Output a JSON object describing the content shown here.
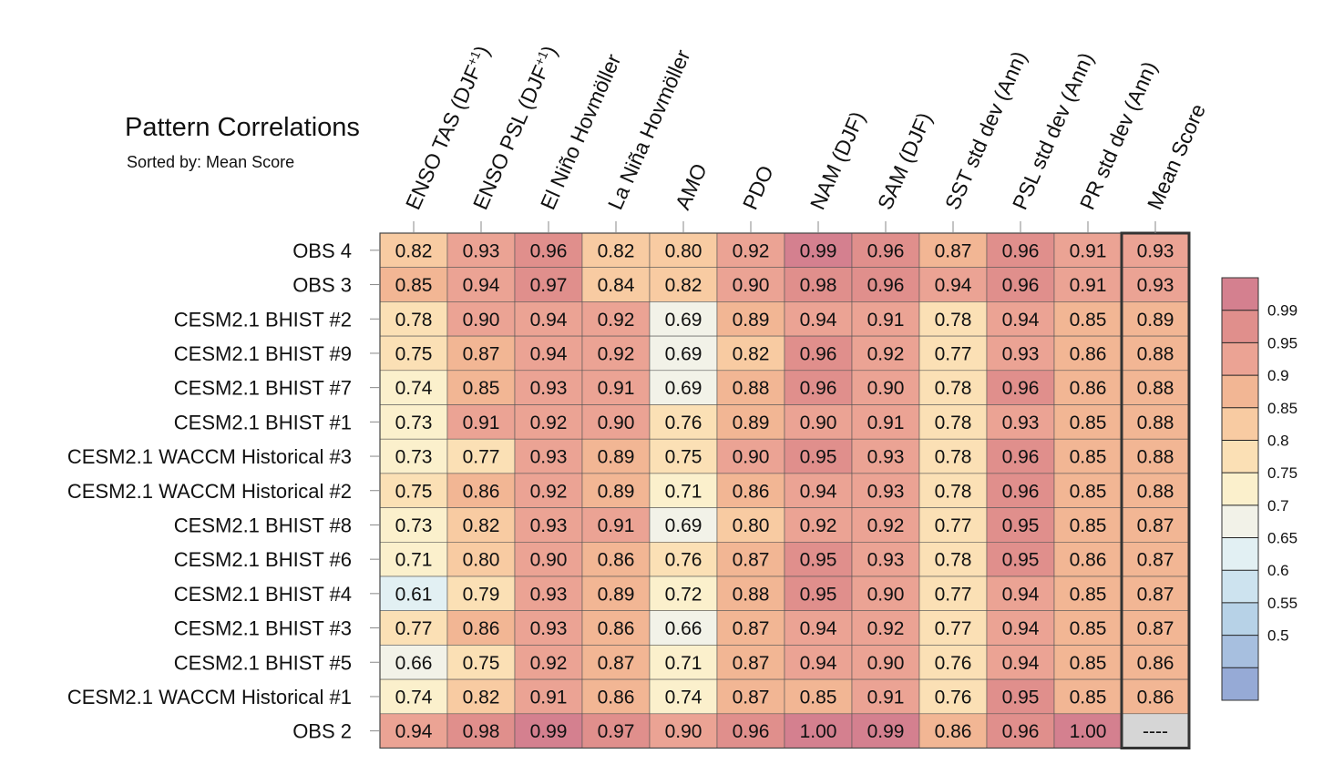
{
  "chart_data": {
    "type": "heatmap",
    "title": "Pattern Correlations",
    "subtitle": "Sorted by: Mean Score",
    "columns": [
      "ENSO TAS (DJF+1)",
      "ENSO PSL (DJF+1)",
      "El Niño Hovmöller",
      "La Niña Hovmöller",
      "AMO",
      "PDO",
      "NAM (DJF)",
      "SAM (DJF)",
      "SST std dev (Ann)",
      "PSL std dev (Ann)",
      "PR std dev (Ann)",
      "Mean Score"
    ],
    "rows": [
      {
        "label": "OBS 4",
        "values": [
          "0.82",
          "0.93",
          "0.96",
          "0.82",
          "0.80",
          "0.92",
          "0.99",
          "0.96",
          "0.87",
          "0.96",
          "0.91",
          "0.93"
        ]
      },
      {
        "label": "OBS 3",
        "values": [
          "0.85",
          "0.94",
          "0.97",
          "0.84",
          "0.82",
          "0.90",
          "0.98",
          "0.96",
          "0.94",
          "0.96",
          "0.91",
          "0.93"
        ]
      },
      {
        "label": "CESM2.1 BHIST #2",
        "values": [
          "0.78",
          "0.90",
          "0.94",
          "0.92",
          "0.69",
          "0.89",
          "0.94",
          "0.91",
          "0.78",
          "0.94",
          "0.85",
          "0.89"
        ]
      },
      {
        "label": "CESM2.1 BHIST #9",
        "values": [
          "0.75",
          "0.87",
          "0.94",
          "0.92",
          "0.69",
          "0.82",
          "0.96",
          "0.92",
          "0.77",
          "0.93",
          "0.86",
          "0.88"
        ]
      },
      {
        "label": "CESM2.1 BHIST #7",
        "values": [
          "0.74",
          "0.85",
          "0.93",
          "0.91",
          "0.69",
          "0.88",
          "0.96",
          "0.90",
          "0.78",
          "0.96",
          "0.86",
          "0.88"
        ]
      },
      {
        "label": "CESM2.1 BHIST #1",
        "values": [
          "0.73",
          "0.91",
          "0.92",
          "0.90",
          "0.76",
          "0.89",
          "0.90",
          "0.91",
          "0.78",
          "0.93",
          "0.85",
          "0.88"
        ]
      },
      {
        "label": "CESM2.1 WACCM Historical #3",
        "values": [
          "0.73",
          "0.77",
          "0.93",
          "0.89",
          "0.75",
          "0.90",
          "0.95",
          "0.93",
          "0.78",
          "0.96",
          "0.85",
          "0.88"
        ]
      },
      {
        "label": "CESM2.1 WACCM Historical #2",
        "values": [
          "0.75",
          "0.86",
          "0.92",
          "0.89",
          "0.71",
          "0.86",
          "0.94",
          "0.93",
          "0.78",
          "0.96",
          "0.85",
          "0.88"
        ]
      },
      {
        "label": "CESM2.1 BHIST #8",
        "values": [
          "0.73",
          "0.82",
          "0.93",
          "0.91",
          "0.69",
          "0.80",
          "0.92",
          "0.92",
          "0.77",
          "0.95",
          "0.85",
          "0.87"
        ]
      },
      {
        "label": "CESM2.1 BHIST #6",
        "values": [
          "0.71",
          "0.80",
          "0.90",
          "0.86",
          "0.76",
          "0.87",
          "0.95",
          "0.93",
          "0.78",
          "0.95",
          "0.86",
          "0.87"
        ]
      },
      {
        "label": "CESM2.1 BHIST #4",
        "values": [
          "0.61",
          "0.79",
          "0.93",
          "0.89",
          "0.72",
          "0.88",
          "0.95",
          "0.90",
          "0.77",
          "0.94",
          "0.85",
          "0.87"
        ]
      },
      {
        "label": "CESM2.1 BHIST #3",
        "values": [
          "0.77",
          "0.86",
          "0.93",
          "0.86",
          "0.66",
          "0.87",
          "0.94",
          "0.92",
          "0.77",
          "0.94",
          "0.85",
          "0.87"
        ]
      },
      {
        "label": "CESM2.1 BHIST #5",
        "values": [
          "0.66",
          "0.75",
          "0.92",
          "0.87",
          "0.71",
          "0.87",
          "0.94",
          "0.90",
          "0.76",
          "0.94",
          "0.85",
          "0.86"
        ]
      },
      {
        "label": "CESM2.1 WACCM Historical #1",
        "values": [
          "0.74",
          "0.82",
          "0.91",
          "0.86",
          "0.74",
          "0.87",
          "0.85",
          "0.91",
          "0.76",
          "0.95",
          "0.85",
          "0.86"
        ]
      },
      {
        "label": "OBS 2",
        "values": [
          "0.94",
          "0.98",
          "0.99",
          "0.97",
          "0.90",
          "0.96",
          "1.00",
          "0.99",
          "0.86",
          "0.96",
          "1.00",
          "----"
        ]
      }
    ],
    "colorbar": {
      "tick_labels": [
        "0.99",
        "0.95",
        "0.9",
        "0.85",
        "0.8",
        "0.75",
        "0.7",
        "0.65",
        "0.6",
        "0.55",
        "0.5"
      ],
      "colors_top_to_bottom": [
        "#d4808f",
        "#e08f8c",
        "#eba394",
        "#f2b694",
        "#f8cba2",
        "#fbe0b5",
        "#fbf0cc",
        "#f2f2e8",
        "#e2f0f3",
        "#cde3ef",
        "#b7d2e7",
        "#a7bfdf",
        "#96aad6"
      ]
    },
    "missing_cell_color": "#d6d6d6"
  }
}
